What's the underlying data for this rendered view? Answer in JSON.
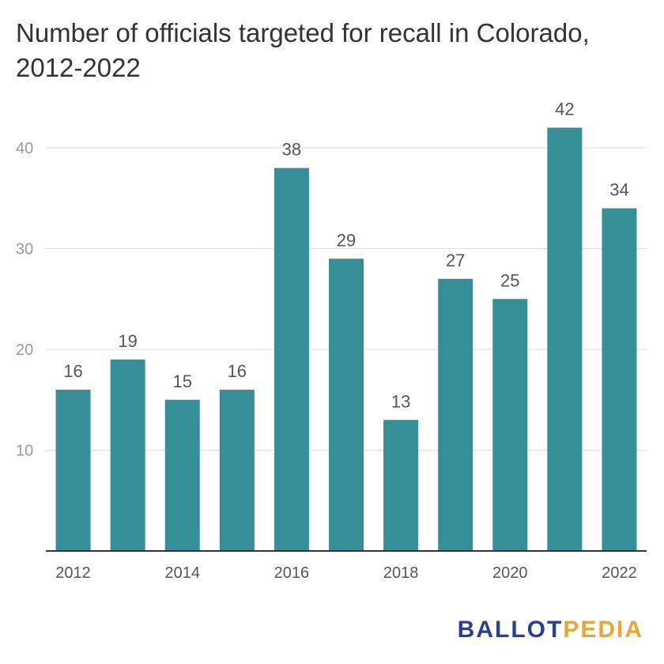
{
  "chart_data": {
    "type": "bar",
    "title": "Number of officials targeted for recall in Colorado, 2012-2022",
    "categories": [
      "2012",
      "2013",
      "2014",
      "2015",
      "2016",
      "2017",
      "2018",
      "2019",
      "2020",
      "2021",
      "2022"
    ],
    "x_tick_labels": [
      "2012",
      "2014",
      "2016",
      "2018",
      "2020",
      "2022"
    ],
    "values": [
      16,
      19,
      15,
      16,
      38,
      29,
      13,
      27,
      25,
      42,
      34
    ],
    "y_ticks": [
      10,
      20,
      30,
      40
    ],
    "ylim": [
      0,
      45
    ],
    "xlabel": "",
    "ylabel": "",
    "grid": true,
    "bar_color": "#368e99"
  },
  "branding": {
    "logo_part1": "BALLOT",
    "logo_part2": "PEDIA"
  }
}
